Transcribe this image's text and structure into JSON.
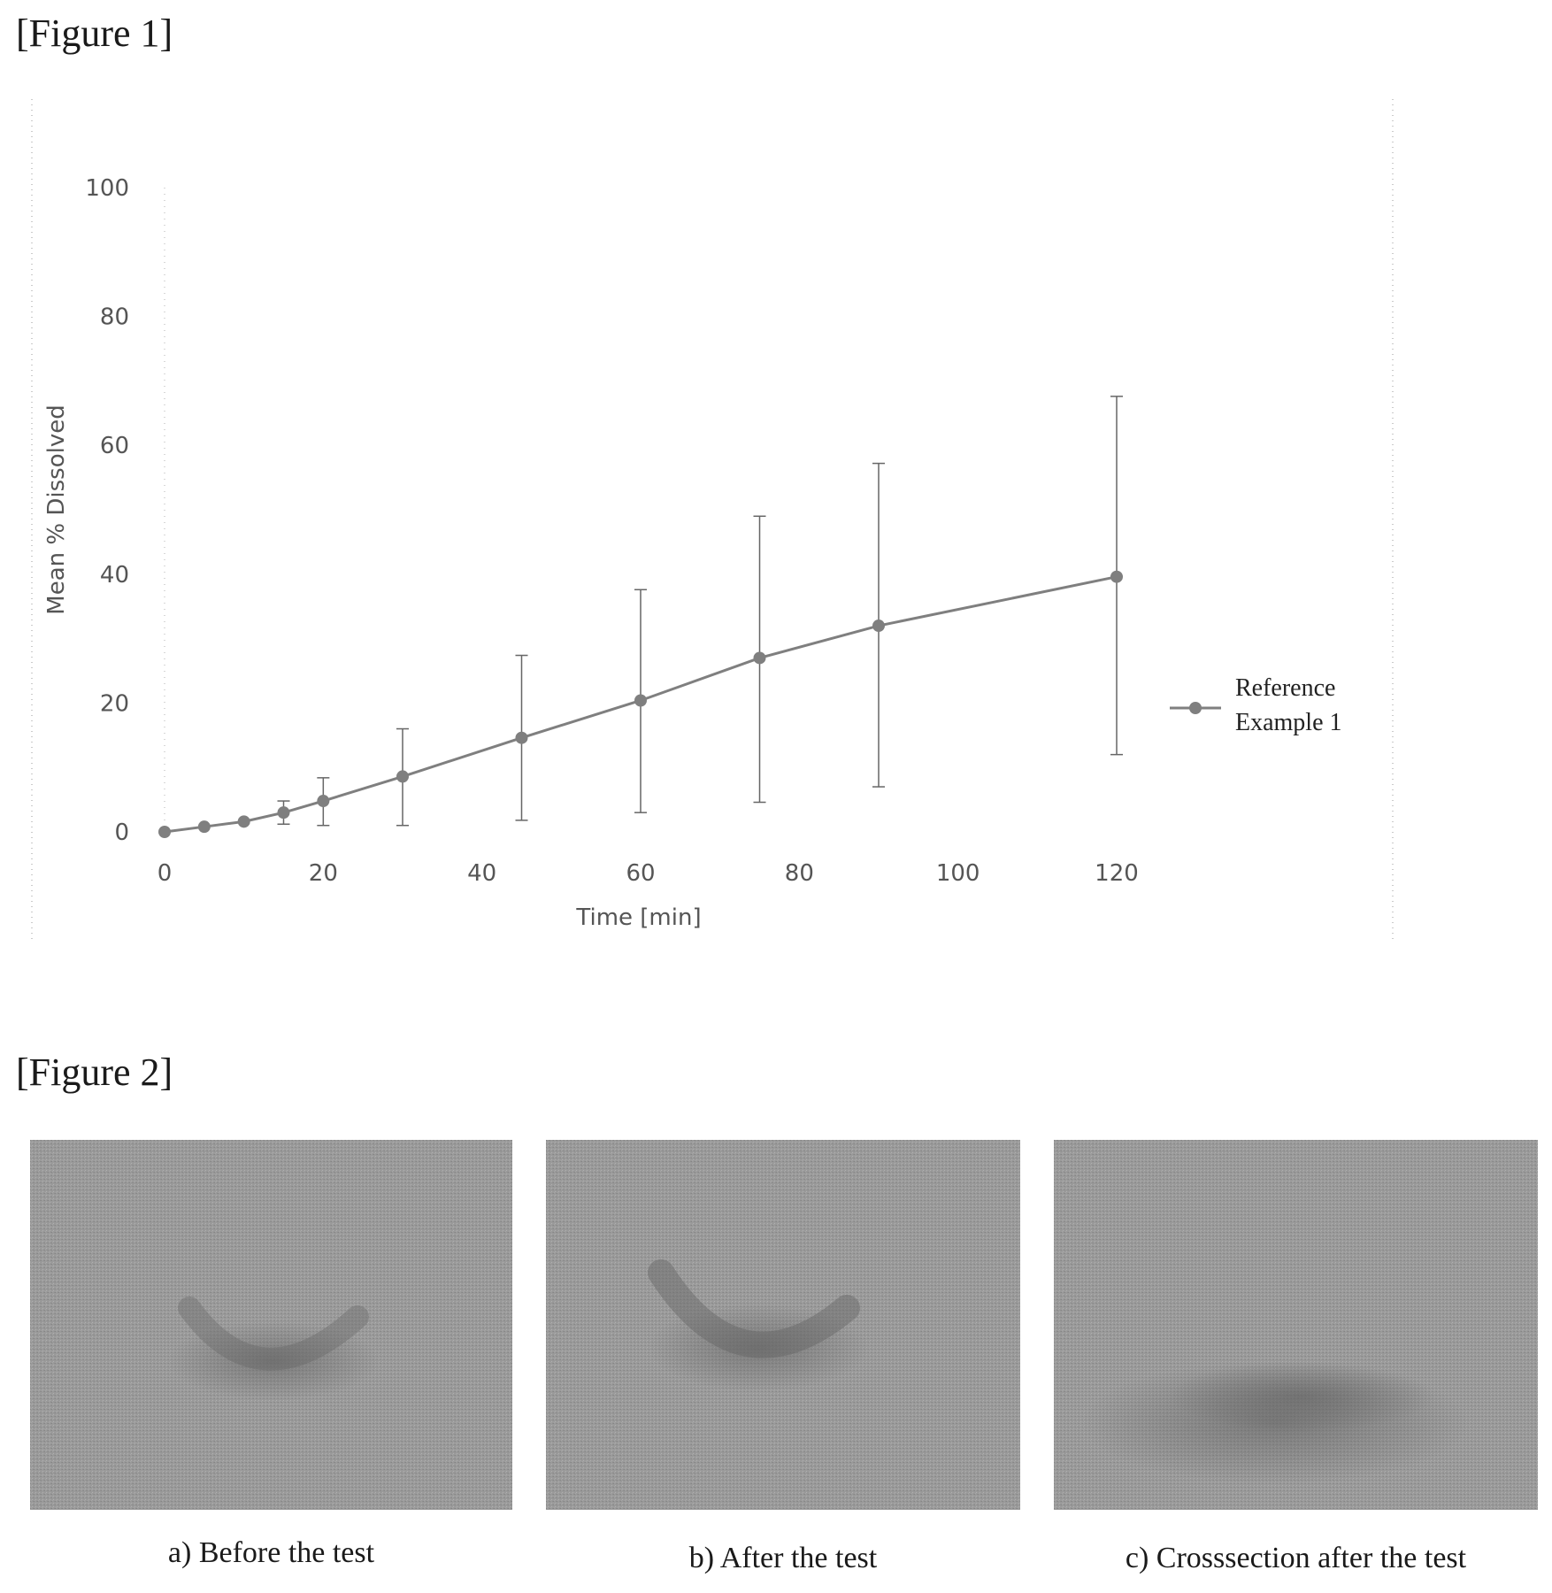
{
  "figure1": {
    "label": "[Figure 1]"
  },
  "figure2": {
    "label": "[Figure 2]"
  },
  "chart_data": {
    "type": "line",
    "title": "",
    "xlabel": "Time [min]",
    "ylabel": "Mean % Dissolved",
    "xlim": [
      0,
      120
    ],
    "ylim": [
      0,
      100
    ],
    "x_ticks": [
      0,
      20,
      40,
      60,
      80,
      100,
      120
    ],
    "y_ticks": [
      0,
      20,
      40,
      60,
      80,
      100
    ],
    "legend_placement": "right",
    "grid": false,
    "series": [
      {
        "name": "Reference Example 1",
        "legend_lines": [
          "Reference",
          "Example 1"
        ],
        "color": "#7f7f7f",
        "x": [
          0,
          5,
          10,
          15,
          20,
          30,
          45,
          60,
          75,
          90,
          120
        ],
        "y": [
          0,
          0.8,
          1.6,
          3.0,
          4.8,
          8.6,
          14.6,
          20.4,
          27.0,
          32.0,
          39.6
        ],
        "error_low": [
          0,
          0.8,
          1.6,
          1.2,
          1.0,
          1.0,
          1.8,
          3.0,
          4.6,
          7.0,
          12.0
        ],
        "error_high": [
          0,
          0.8,
          1.6,
          4.8,
          8.4,
          16.0,
          27.4,
          37.6,
          49.0,
          57.2,
          67.6
        ]
      }
    ]
  },
  "photos": {
    "a": {
      "caption": "a) Before the test"
    },
    "b": {
      "caption": "b) After the test"
    },
    "c": {
      "caption": "c) Crosssection after the test"
    }
  }
}
